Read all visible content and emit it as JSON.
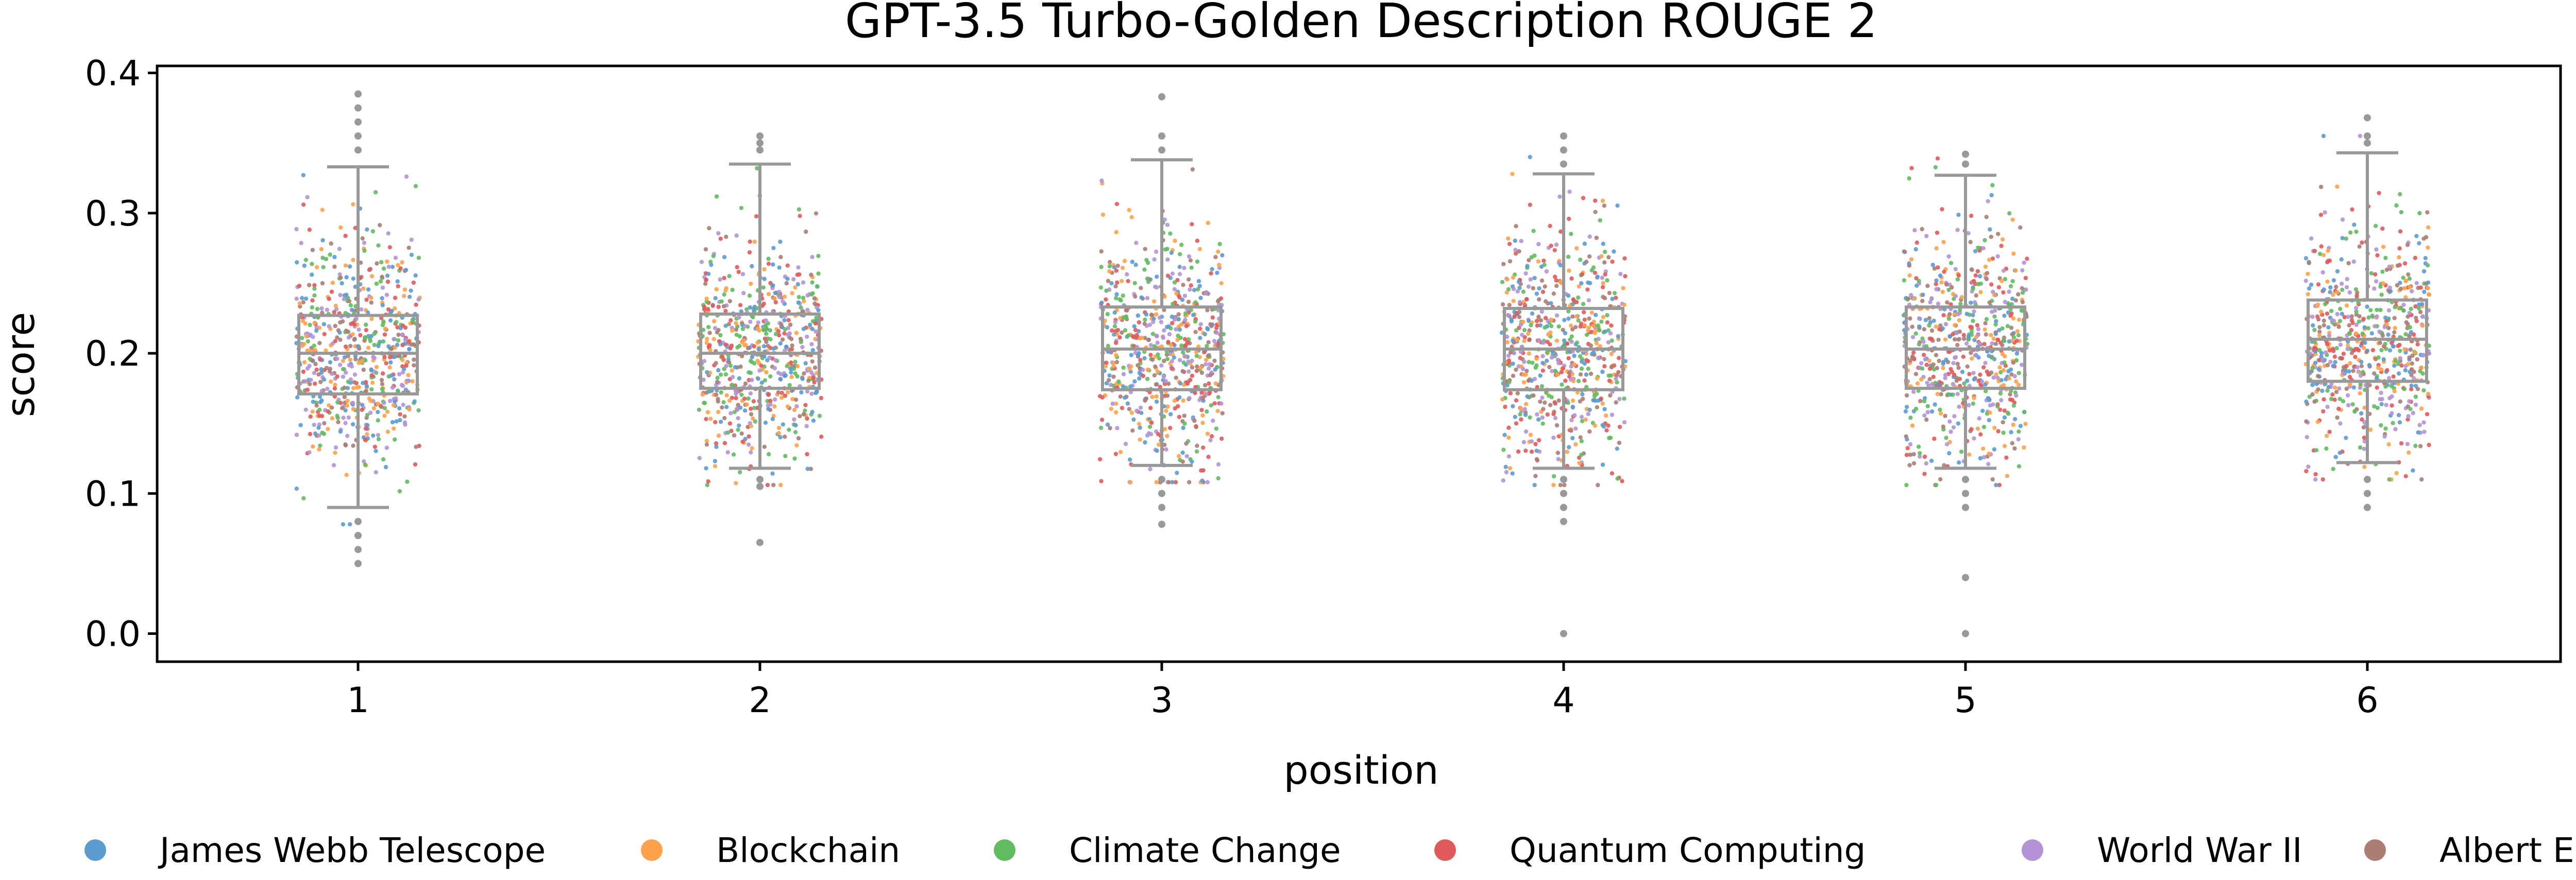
{
  "chart_data": {
    "type": "box",
    "title": "GPT-3.5 Turbo-Golden Description ROUGE 2",
    "xlabel": "position",
    "ylabel": "score",
    "categories": [
      "1",
      "2",
      "3",
      "4",
      "5",
      "6"
    ],
    "ylim": [
      -0.02,
      0.405
    ],
    "yticks": [
      "0.0",
      "0.1",
      "0.2",
      "0.3",
      "0.4"
    ],
    "ytick_values": [
      0.0,
      0.1,
      0.2,
      0.3,
      0.4
    ],
    "grid": false,
    "legend_placement": "bottom",
    "box_color": "#999999",
    "boxes": [
      {
        "category": "1",
        "q1": 0.171,
        "median": 0.2,
        "q3": 0.227,
        "whisker_low": 0.09,
        "whisker_high": 0.333,
        "outliers": [
          0.385,
          0.375,
          0.365,
          0.355,
          0.345,
          0.08,
          0.07,
          0.06,
          0.05
        ]
      },
      {
        "category": "2",
        "q1": 0.175,
        "median": 0.2,
        "q3": 0.228,
        "whisker_low": 0.118,
        "whisker_high": 0.335,
        "outliers": [
          0.355,
          0.35,
          0.345,
          0.11,
          0.105,
          0.065
        ]
      },
      {
        "category": "3",
        "q1": 0.174,
        "median": 0.203,
        "q3": 0.233,
        "whisker_low": 0.12,
        "whisker_high": 0.338,
        "outliers": [
          0.383,
          0.355,
          0.345,
          0.11,
          0.1,
          0.09,
          0.078
        ]
      },
      {
        "category": "4",
        "q1": 0.174,
        "median": 0.203,
        "q3": 0.232,
        "whisker_low": 0.118,
        "whisker_high": 0.328,
        "outliers": [
          0.355,
          0.345,
          0.335,
          0.11,
          0.1,
          0.09,
          0.08,
          0.0
        ]
      },
      {
        "category": "5",
        "q1": 0.175,
        "median": 0.203,
        "q3": 0.233,
        "whisker_low": 0.118,
        "whisker_high": 0.327,
        "outliers": [
          0.342,
          0.335,
          0.11,
          0.1,
          0.09,
          0.04,
          0.0
        ]
      },
      {
        "category": "6",
        "q1": 0.18,
        "median": 0.21,
        "q3": 0.238,
        "whisker_low": 0.122,
        "whisker_high": 0.343,
        "outliers": [
          0.368,
          0.355,
          0.35,
          0.11,
          0.1,
          0.09
        ]
      }
    ],
    "series": [
      {
        "name": "James Webb Telescope",
        "color": "#5b9bd0"
      },
      {
        "name": "Blockchain",
        "color": "#ffa24a"
      },
      {
        "name": "Climate Change",
        "color": "#62bb61"
      },
      {
        "name": "Quantum Computing",
        "color": "#e05a5b"
      },
      {
        "name": "World War II",
        "color": "#b393d6"
      },
      {
        "name": "Albert Einstein",
        "color": "#ab7d74"
      }
    ]
  }
}
